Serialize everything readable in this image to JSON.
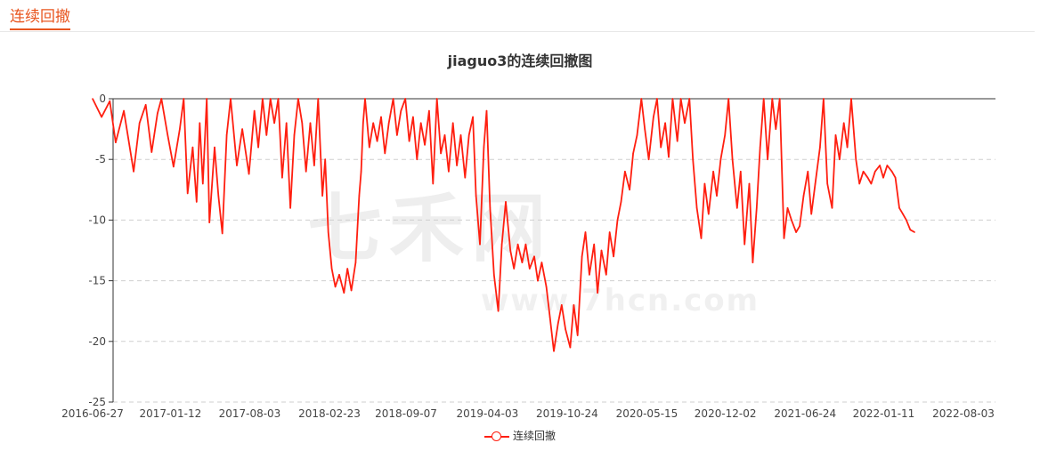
{
  "page": {
    "tab_title": "连续回撤"
  },
  "watermark": {
    "logo_text": "七禾网",
    "url_text": "www.7hcn.com"
  },
  "chart_data": {
    "type": "line",
    "title": "jiaguo3的连续回撤图",
    "xlabel": "",
    "ylabel": "",
    "ylim": [
      -25,
      0
    ],
    "y_ticks": [
      0,
      -5,
      -10,
      -15,
      -20,
      -25
    ],
    "x_ticks": [
      "2016-06-27",
      "2017-01-12",
      "2017-08-03",
      "2018-02-23",
      "2018-09-07",
      "2019-04-03",
      "2019-10-24",
      "2020-05-15",
      "2020-12-02",
      "2021-06-24",
      "2022-01-11",
      "2022-08-03"
    ],
    "grid": true,
    "legend": "bottom-center",
    "series": [
      {
        "name": "连续回撤",
        "color": "#ff1f10",
        "points": [
          [
            "2016-06-27",
            0
          ],
          [
            "2016-07-20",
            -1.5
          ],
          [
            "2016-08-10",
            -0.2
          ],
          [
            "2016-08-25",
            -3.6
          ],
          [
            "2016-09-15",
            -1.0
          ],
          [
            "2016-10-10",
            -6.0
          ],
          [
            "2016-10-25",
            -2.0
          ],
          [
            "2016-11-10",
            -0.5
          ],
          [
            "2016-11-25",
            -4.4
          ],
          [
            "2016-12-10",
            -1.2
          ],
          [
            "2016-12-20",
            0
          ],
          [
            "2017-01-05",
            -3.0
          ],
          [
            "2017-01-20",
            -5.6
          ],
          [
            "2017-02-05",
            -2.5
          ],
          [
            "2017-02-15",
            0
          ],
          [
            "2017-02-25",
            -7.8
          ],
          [
            "2017-03-10",
            -4.0
          ],
          [
            "2017-03-20",
            -8.5
          ],
          [
            "2017-03-28",
            -2.0
          ],
          [
            "2017-04-05",
            -7.0
          ],
          [
            "2017-04-15",
            0
          ],
          [
            "2017-04-22",
            -10.2
          ],
          [
            "2017-05-05",
            -4.0
          ],
          [
            "2017-05-15",
            -8.0
          ],
          [
            "2017-05-25",
            -11.1
          ],
          [
            "2017-06-05",
            -3.0
          ],
          [
            "2017-06-15",
            0
          ],
          [
            "2017-07-01",
            -5.5
          ],
          [
            "2017-07-15",
            -2.5
          ],
          [
            "2017-08-01",
            -6.2
          ],
          [
            "2017-08-15",
            -1.0
          ],
          [
            "2017-08-25",
            -4.0
          ],
          [
            "2017-09-05",
            0
          ],
          [
            "2017-09-15",
            -3.0
          ],
          [
            "2017-09-25",
            0
          ],
          [
            "2017-10-05",
            -2.0
          ],
          [
            "2017-10-15",
            0
          ],
          [
            "2017-10-25",
            -6.5
          ],
          [
            "2017-11-05",
            -2.0
          ],
          [
            "2017-11-15",
            -9.0
          ],
          [
            "2017-11-25",
            -3.0
          ],
          [
            "2017-12-05",
            0
          ],
          [
            "2017-12-15",
            -2.0
          ],
          [
            "2017-12-25",
            -6.0
          ],
          [
            "2018-01-05",
            -2.0
          ],
          [
            "2018-01-15",
            -5.5
          ],
          [
            "2018-01-25",
            0
          ],
          [
            "2018-02-05",
            -8.0
          ],
          [
            "2018-02-12",
            -5.0
          ],
          [
            "2018-02-20",
            -11.0
          ],
          [
            "2018-03-01",
            -14.0
          ],
          [
            "2018-03-10",
            -15.5
          ],
          [
            "2018-03-20",
            -14.5
          ],
          [
            "2018-04-01",
            -16.0
          ],
          [
            "2018-04-10",
            -14.0
          ],
          [
            "2018-04-20",
            -15.8
          ],
          [
            "2018-05-01",
            -13.5
          ],
          [
            "2018-05-10",
            -8.0
          ],
          [
            "2018-05-15",
            -6.0
          ],
          [
            "2018-05-20",
            -2.0
          ],
          [
            "2018-05-25",
            0
          ],
          [
            "2018-06-05",
            -4.0
          ],
          [
            "2018-06-15",
            -2.0
          ],
          [
            "2018-06-25",
            -3.5
          ],
          [
            "2018-07-05",
            -1.5
          ],
          [
            "2018-07-15",
            -4.5
          ],
          [
            "2018-07-25",
            -2.0
          ],
          [
            "2018-08-05",
            0
          ],
          [
            "2018-08-15",
            -3.0
          ],
          [
            "2018-08-25",
            -1.0
          ],
          [
            "2018-09-05",
            0
          ],
          [
            "2018-09-15",
            -3.5
          ],
          [
            "2018-09-25",
            -1.5
          ],
          [
            "2018-10-05",
            -5.0
          ],
          [
            "2018-10-15",
            -2.0
          ],
          [
            "2018-10-25",
            -3.8
          ],
          [
            "2018-11-05",
            -1.0
          ],
          [
            "2018-11-15",
            -7.0
          ],
          [
            "2018-11-25",
            0
          ],
          [
            "2018-12-05",
            -4.5
          ],
          [
            "2018-12-15",
            -3.0
          ],
          [
            "2018-12-25",
            -6.0
          ],
          [
            "2019-01-05",
            -2.0
          ],
          [
            "2019-01-15",
            -5.5
          ],
          [
            "2019-01-25",
            -3.0
          ],
          [
            "2019-02-05",
            -6.5
          ],
          [
            "2019-02-15",
            -3.0
          ],
          [
            "2019-02-25",
            -1.5
          ],
          [
            "2019-03-05",
            -8.0
          ],
          [
            "2019-03-15",
            -12.0
          ],
          [
            "2019-03-25",
            -4.0
          ],
          [
            "2019-04-01",
            -1.0
          ],
          [
            "2019-04-10",
            -9.0
          ],
          [
            "2019-04-20",
            -14.5
          ],
          [
            "2019-05-01",
            -17.5
          ],
          [
            "2019-05-10",
            -12.0
          ],
          [
            "2019-05-20",
            -8.5
          ],
          [
            "2019-06-01",
            -12.5
          ],
          [
            "2019-06-10",
            -14.0
          ],
          [
            "2019-06-20",
            -12.0
          ],
          [
            "2019-07-01",
            -13.5
          ],
          [
            "2019-07-10",
            -12.0
          ],
          [
            "2019-07-20",
            -14.0
          ],
          [
            "2019-08-01",
            -13.0
          ],
          [
            "2019-08-10",
            -15.0
          ],
          [
            "2019-08-20",
            -13.5
          ],
          [
            "2019-09-01",
            -15.5
          ],
          [
            "2019-09-10",
            -18.0
          ],
          [
            "2019-09-20",
            -20.8
          ],
          [
            "2019-10-01",
            -18.5
          ],
          [
            "2019-10-10",
            -17.0
          ],
          [
            "2019-10-20",
            -19.0
          ],
          [
            "2019-11-01",
            -20.5
          ],
          [
            "2019-11-10",
            -17.0
          ],
          [
            "2019-11-20",
            -19.5
          ],
          [
            "2019-12-01",
            -13.0
          ],
          [
            "2019-12-10",
            -11.0
          ],
          [
            "2019-12-20",
            -14.5
          ],
          [
            "2020-01-01",
            -12.0
          ],
          [
            "2020-01-10",
            -16.0
          ],
          [
            "2020-01-20",
            -12.5
          ],
          [
            "2020-02-01",
            -14.5
          ],
          [
            "2020-02-10",
            -11.0
          ],
          [
            "2020-02-20",
            -13.0
          ],
          [
            "2020-03-01",
            -10.0
          ],
          [
            "2020-03-10",
            -8.5
          ],
          [
            "2020-03-20",
            -6.0
          ],
          [
            "2020-04-01",
            -7.5
          ],
          [
            "2020-04-10",
            -4.5
          ],
          [
            "2020-04-20",
            -3.0
          ],
          [
            "2020-05-01",
            0
          ],
          [
            "2020-05-10",
            -2.5
          ],
          [
            "2020-05-20",
            -5.0
          ],
          [
            "2020-06-01",
            -1.5
          ],
          [
            "2020-06-10",
            0
          ],
          [
            "2020-06-20",
            -4.0
          ],
          [
            "2020-07-01",
            -2.0
          ],
          [
            "2020-07-10",
            -4.8
          ],
          [
            "2020-07-20",
            0
          ],
          [
            "2020-08-01",
            -3.5
          ],
          [
            "2020-08-10",
            0
          ],
          [
            "2020-08-20",
            -2.0
          ],
          [
            "2020-09-01",
            0
          ],
          [
            "2020-09-10",
            -5.0
          ],
          [
            "2020-09-20",
            -9.0
          ],
          [
            "2020-10-01",
            -11.5
          ],
          [
            "2020-10-10",
            -7.0
          ],
          [
            "2020-10-20",
            -9.5
          ],
          [
            "2020-11-01",
            -6.0
          ],
          [
            "2020-11-10",
            -8.0
          ],
          [
            "2020-11-20",
            -5.0
          ],
          [
            "2020-12-01",
            -3.0
          ],
          [
            "2020-12-10",
            0
          ],
          [
            "2020-12-20",
            -5.0
          ],
          [
            "2021-01-01",
            -9.0
          ],
          [
            "2021-01-10",
            -6.0
          ],
          [
            "2021-01-20",
            -12.0
          ],
          [
            "2021-02-01",
            -7.0
          ],
          [
            "2021-02-10",
            -13.5
          ],
          [
            "2021-02-20",
            -9.0
          ],
          [
            "2021-03-01",
            -4.0
          ],
          [
            "2021-03-10",
            0
          ],
          [
            "2021-03-20",
            -5.0
          ],
          [
            "2021-04-01",
            0
          ],
          [
            "2021-04-10",
            -2.5
          ],
          [
            "2021-04-20",
            0
          ],
          [
            "2021-05-01",
            -11.5
          ],
          [
            "2021-05-10",
            -9.0
          ],
          [
            "2021-05-20",
            -10.0
          ],
          [
            "2021-06-01",
            -11.0
          ],
          [
            "2021-06-10",
            -10.5
          ],
          [
            "2021-06-20",
            -8.0
          ],
          [
            "2021-07-01",
            -6.0
          ],
          [
            "2021-07-10",
            -9.5
          ],
          [
            "2021-07-20",
            -7.0
          ],
          [
            "2021-08-01",
            -4.0
          ],
          [
            "2021-08-10",
            0
          ],
          [
            "2021-08-20",
            -7.0
          ],
          [
            "2021-09-01",
            -9.0
          ],
          [
            "2021-09-10",
            -3.0
          ],
          [
            "2021-09-20",
            -5.0
          ],
          [
            "2021-10-01",
            -2.0
          ],
          [
            "2021-10-10",
            -4.0
          ],
          [
            "2021-10-20",
            0
          ],
          [
            "2021-11-01",
            -5.0
          ],
          [
            "2021-11-10",
            -7.0
          ],
          [
            "2021-11-20",
            -6.0
          ],
          [
            "2021-12-01",
            -6.5
          ],
          [
            "2021-12-10",
            -7.0
          ],
          [
            "2021-12-20",
            -6.0
          ],
          [
            "2022-01-01",
            -5.5
          ],
          [
            "2022-01-10",
            -6.5
          ],
          [
            "2022-01-20",
            -5.5
          ],
          [
            "2022-02-01",
            -6.0
          ],
          [
            "2022-02-10",
            -6.5
          ],
          [
            "2022-02-20",
            -9.0
          ],
          [
            "2022-03-01",
            -9.5
          ],
          [
            "2022-03-10",
            -10.0
          ],
          [
            "2022-03-20",
            -10.8
          ],
          [
            "2022-03-31",
            -11.0
          ]
        ]
      }
    ]
  }
}
